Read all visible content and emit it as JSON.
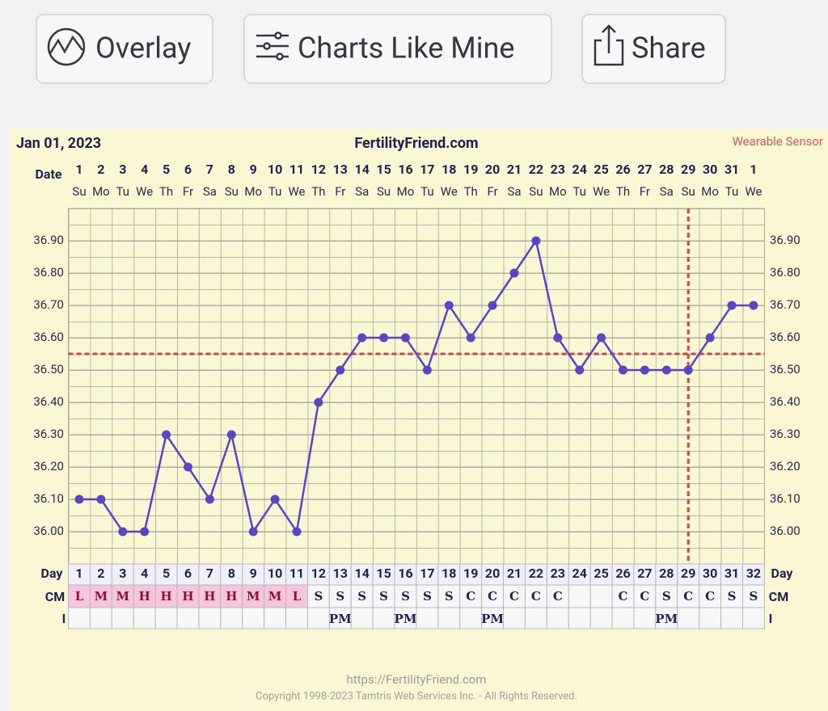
{
  "toolbar": {
    "buttons": [
      {
        "label": "Overlay"
      },
      {
        "label": "Charts Like Mine"
      },
      {
        "label": "Share"
      }
    ]
  },
  "chart_data": {
    "type": "line",
    "start_date": "Jan 01, 2023",
    "title": "FertilityFriend.com",
    "annotation": "Wearable Sensor",
    "date_label": "Date",
    "categories": [
      "1",
      "2",
      "3",
      "4",
      "5",
      "6",
      "7",
      "8",
      "9",
      "10",
      "11",
      "12",
      "13",
      "14",
      "15",
      "16",
      "17",
      "18",
      "19",
      "20",
      "21",
      "22",
      "23",
      "24",
      "25",
      "26",
      "27",
      "28",
      "29",
      "30",
      "31",
      "1"
    ],
    "weekdays": [
      "Su",
      "Mo",
      "Tu",
      "We",
      "Th",
      "Fr",
      "Sa",
      "Su",
      "Mo",
      "Tu",
      "We",
      "Th",
      "Fr",
      "Sa",
      "Su",
      "Mo",
      "Tu",
      "We",
      "Th",
      "Fr",
      "Sa",
      "Su",
      "Mo",
      "Tu",
      "We",
      "Th",
      "Fr",
      "Sa",
      "Su",
      "Mo",
      "Tu",
      "We"
    ],
    "values": [
      36.1,
      36.1,
      36.0,
      36.0,
      36.3,
      36.2,
      36.1,
      36.3,
      36.0,
      36.1,
      36.0,
      36.4,
      36.5,
      36.6,
      36.6,
      36.6,
      36.5,
      36.7,
      36.6,
      36.7,
      36.8,
      36.9,
      36.6,
      36.5,
      36.6,
      36.5,
      36.5,
      36.5,
      36.5,
      36.6,
      36.7,
      36.7
    ],
    "color": "#5a45c4",
    "ylim": [
      35.9,
      37.0
    ],
    "yticks": [
      {
        "value": 36.0,
        "label": "36.00"
      },
      {
        "value": 36.1,
        "label": "36.10"
      },
      {
        "value": 36.2,
        "label": "36.20"
      },
      {
        "value": 36.3,
        "label": "36.30"
      },
      {
        "value": 36.4,
        "label": "36.40"
      },
      {
        "value": 36.5,
        "label": "36.50"
      },
      {
        "value": 36.6,
        "label": "36.60"
      },
      {
        "value": 36.7,
        "label": "36.70"
      },
      {
        "value": 36.8,
        "label": "36.80"
      },
      {
        "value": 36.9,
        "label": "36.90"
      }
    ],
    "coverline": 36.55,
    "ovulation_day": 29,
    "marker_color": "#c8474a",
    "day_label": "Day",
    "cycle_days": [
      1,
      2,
      3,
      4,
      5,
      6,
      7,
      8,
      9,
      10,
      11,
      12,
      13,
      14,
      15,
      16,
      17,
      18,
      19,
      20,
      21,
      22,
      23,
      24,
      25,
      26,
      27,
      28,
      29,
      30,
      31,
      32
    ],
    "cm_label": "CM",
    "cm": [
      "L",
      "M",
      "M",
      "H",
      "H",
      "H",
      "H",
      "H",
      "M",
      "M",
      "L",
      "S",
      "S",
      "S",
      "S",
      "S",
      "S",
      "S",
      "C",
      "C",
      "C",
      "C",
      "C",
      null,
      null,
      "C",
      "C",
      "S",
      "C",
      "C",
      "S",
      "S"
    ],
    "cm_colors": [
      "#f6c6dd",
      "#f6c6dd",
      "#f6c6dd",
      "#f6c6dd",
      "#f6c6dd",
      "#f6c6dd",
      "#f6c6dd",
      "#f6c6dd",
      "#f6c6dd",
      "#f6c6dd",
      "#f6c6dd",
      null,
      null,
      null,
      null,
      null,
      null,
      null,
      null,
      null,
      null,
      null,
      null,
      null,
      null,
      null,
      null,
      null,
      null,
      null,
      null,
      null
    ],
    "i_label": "I",
    "intercourse": [
      null,
      null,
      null,
      null,
      null,
      null,
      null,
      null,
      null,
      null,
      null,
      null,
      "PM",
      null,
      null,
      "PM",
      null,
      null,
      null,
      "PM",
      null,
      null,
      null,
      null,
      null,
      null,
      null,
      "PM",
      null,
      null,
      null,
      null
    ]
  },
  "footer": {
    "url": "https://FertilityFriend.com",
    "copyright": "Copyright 1998-2023 Tamtris Web Services Inc. - All Rights Reserved."
  }
}
